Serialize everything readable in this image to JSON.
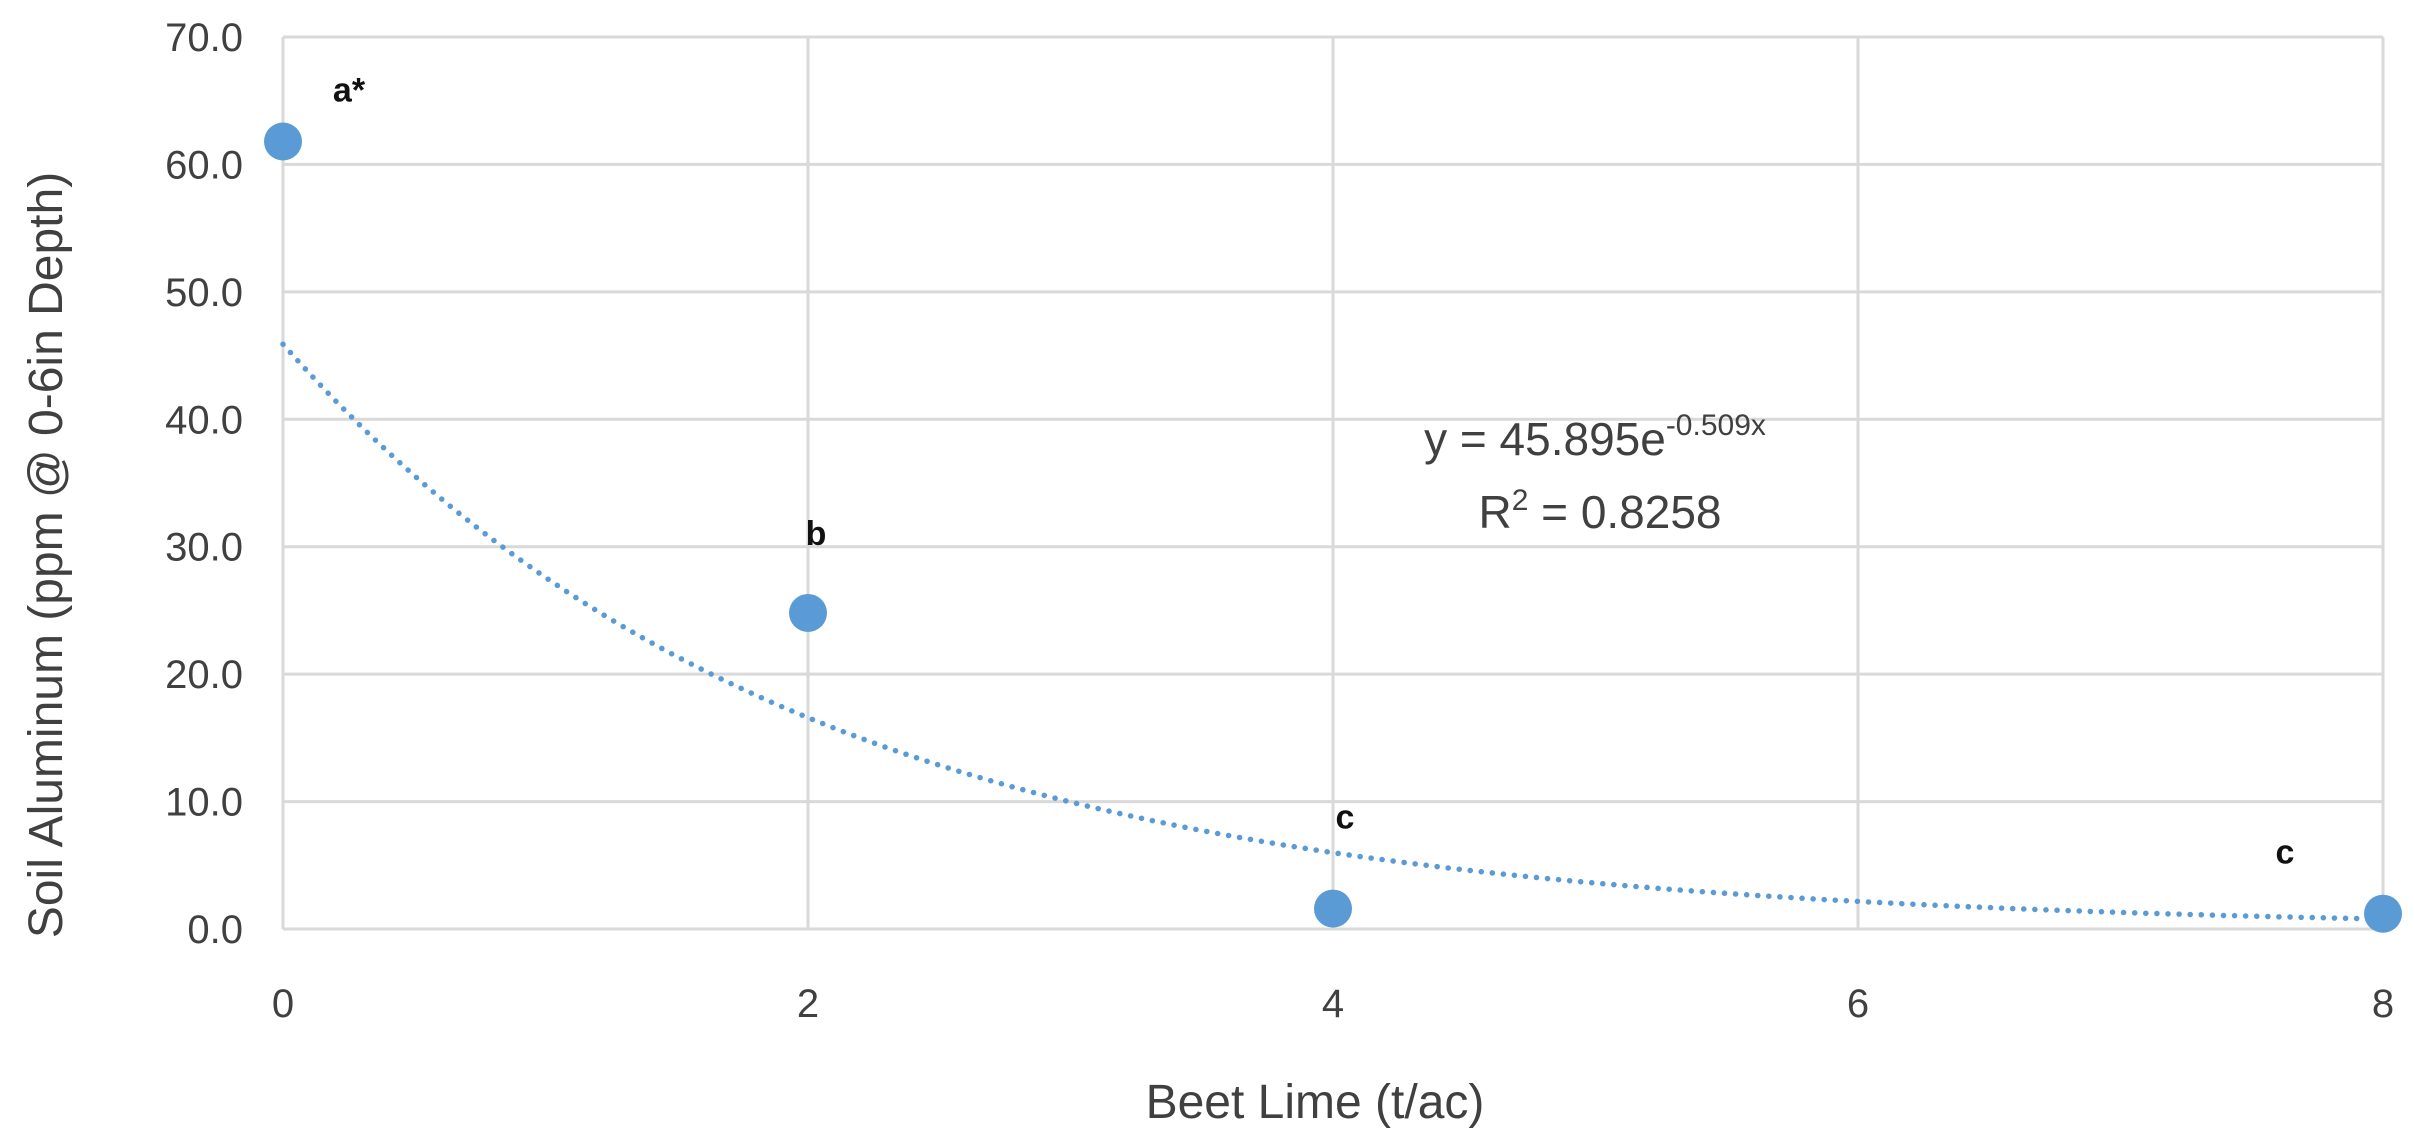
{
  "chart_data": {
    "type": "scatter",
    "title": "",
    "xlabel": "Beet Lime (t/ac)",
    "ylabel": "Soil Aluminum (ppm @ 0-6in Depth)",
    "xlim": [
      0,
      8
    ],
    "ylim": [
      0,
      70
    ],
    "x_ticks": [
      "0",
      "2",
      "4",
      "6",
      "8"
    ],
    "y_ticks": [
      "0.0",
      "10.0",
      "20.0",
      "30.0",
      "40.0",
      "50.0",
      "60.0",
      "70.0"
    ],
    "grid": true,
    "series": [
      {
        "x": [
          0,
          2,
          4,
          8
        ],
        "y": [
          61.8,
          24.8,
          1.6,
          1.2
        ],
        "labels": [
          "a*",
          "b",
          "c",
          "c"
        ],
        "color": "#5b9bd5"
      }
    ],
    "trendline": {
      "type": "exponential",
      "a": 45.895,
      "b": -0.509,
      "color": "#5b9bd5",
      "style": "dotted",
      "equation_prefix": "y = 45.895e",
      "equation_exponent": "-0.509x",
      "r2_prefix": "R",
      "r2_sup": "2",
      "r2_value": " = 0.8258"
    }
  }
}
